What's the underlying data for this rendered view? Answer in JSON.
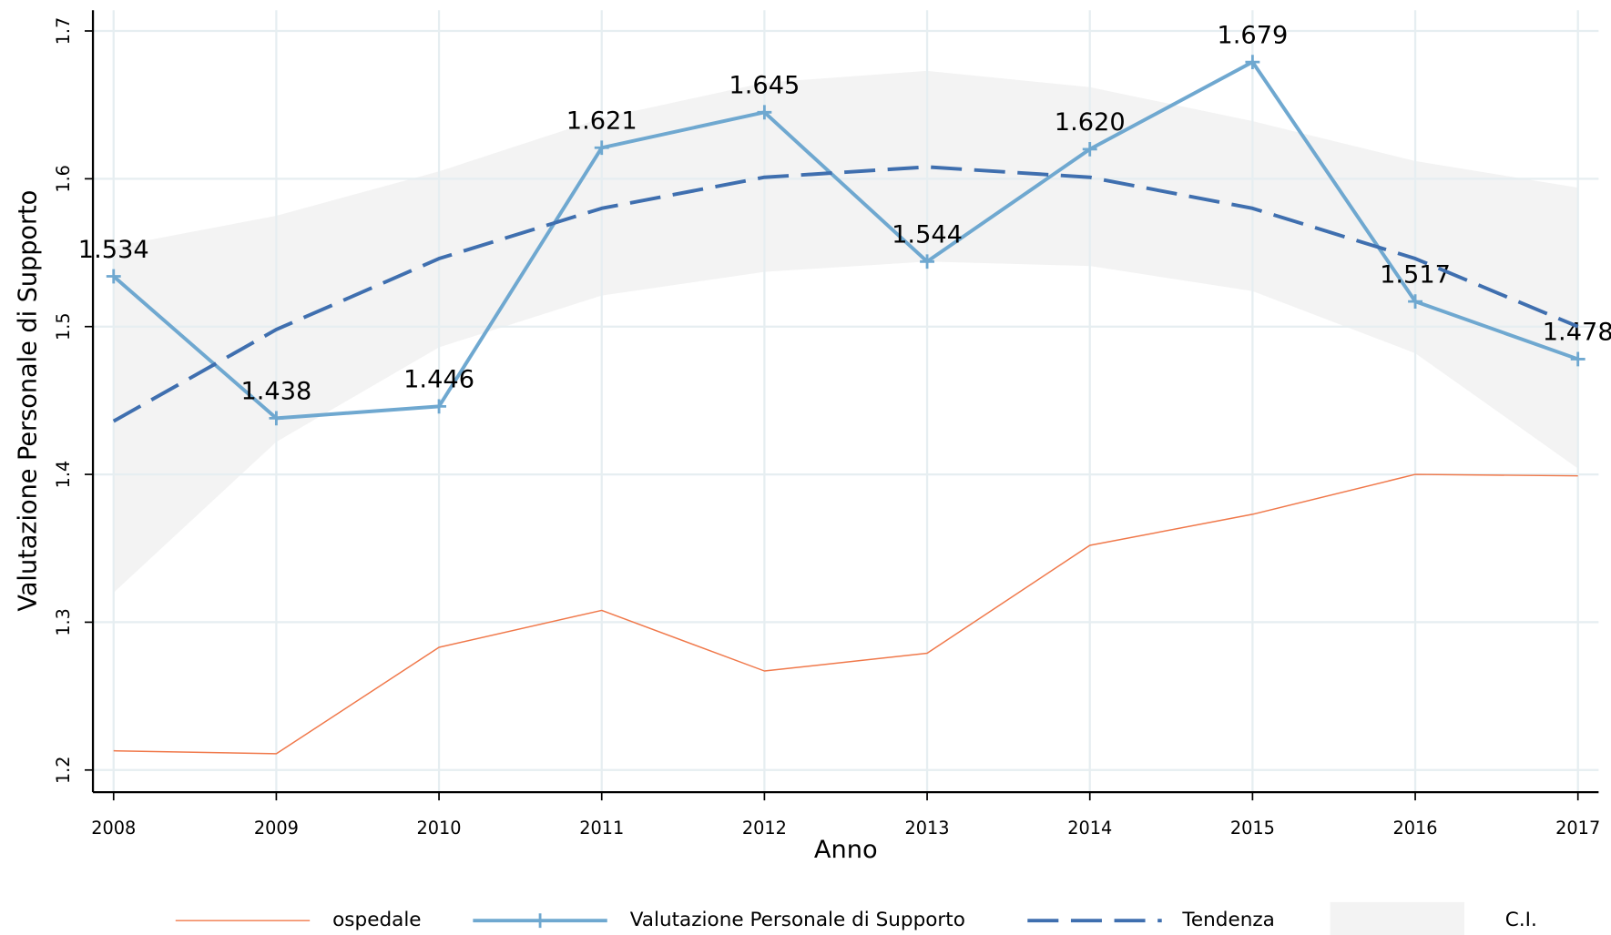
{
  "chart_data": {
    "type": "line",
    "xlabel": "Anno",
    "ylabel": "Valutazione Personale di Supporto",
    "x": [
      2008,
      2009,
      2010,
      2011,
      2012,
      2013,
      2014,
      2015,
      2016,
      2017
    ],
    "xlim": [
      2007.873,
      2017.127
    ],
    "xticks": [
      2008,
      2009,
      2010,
      2011,
      2012,
      2013,
      2014,
      2015,
      2016,
      2017
    ],
    "ylim": [
      1.185,
      1.714
    ],
    "yticks": [
      1.2,
      1.3,
      1.4,
      1.5,
      1.6,
      1.7
    ],
    "grid": true,
    "legend": "bottom",
    "series": [
      {
        "name": "ospedale",
        "color": "#f0784a",
        "style": "thin",
        "values": [
          1.213,
          1.211,
          1.283,
          1.308,
          1.267,
          1.279,
          1.352,
          1.373,
          1.4,
          1.399
        ]
      },
      {
        "name": "Valutazione Personale di Supporto",
        "color": "#6fa8d0",
        "style": "marker",
        "values": [
          1.534,
          1.438,
          1.446,
          1.621,
          1.645,
          1.544,
          1.62,
          1.679,
          1.517,
          1.478
        ],
        "value_labels": [
          "1.534",
          "1.438",
          "1.446",
          "1.621",
          "1.645",
          "1.544",
          "1.620",
          "1.679",
          "1.517",
          "1.478"
        ]
      },
      {
        "name": "Tendenza",
        "color": "#3f6faf",
        "style": "dashed",
        "values": [
          1.436,
          1.498,
          1.546,
          1.58,
          1.601,
          1.608,
          1.601,
          1.58,
          1.546,
          1.5
        ]
      },
      {
        "name": "C.I.",
        "color": "#f3f3f3",
        "style": "band",
        "upper": [
          1.554,
          1.575,
          1.605,
          1.641,
          1.665,
          1.673,
          1.662,
          1.639,
          1.612,
          1.594
        ],
        "lower": [
          1.32,
          1.422,
          1.486,
          1.521,
          1.537,
          1.544,
          1.541,
          1.524,
          1.482,
          1.404
        ]
      }
    ]
  }
}
